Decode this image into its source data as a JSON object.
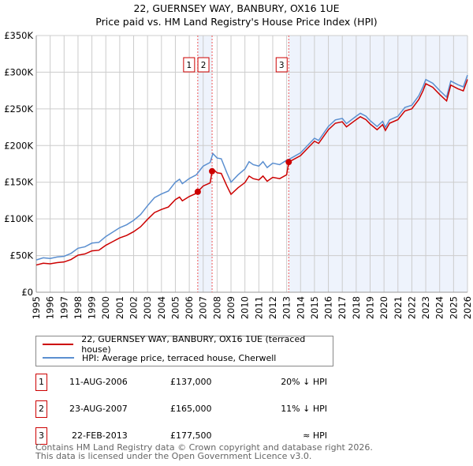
{
  "chart_data": {
    "type": "line",
    "title": "22, GUERNSEY WAY, BANBURY, OX16 1UE",
    "subtitle": "Price paid vs. HM Land Registry's House Price Index (HPI)",
    "xlim": [
      1995,
      2026
    ],
    "ylim": [
      0,
      350000
    ],
    "x_ticks": [
      "1995",
      "1996",
      "1997",
      "1998",
      "1999",
      "2000",
      "2001",
      "2002",
      "2003",
      "2004",
      "2005",
      "2006",
      "2007",
      "2008",
      "2009",
      "2010",
      "2011",
      "2012",
      "2013",
      "2014",
      "2015",
      "2016",
      "2017",
      "2018",
      "2019",
      "2020",
      "2021",
      "2022",
      "2023",
      "2024",
      "2025",
      "2026"
    ],
    "y_ticks": [
      {
        "v": 0,
        "label": "£0"
      },
      {
        "v": 50000,
        "label": "£50K"
      },
      {
        "v": 100000,
        "label": "£100K"
      },
      {
        "v": 150000,
        "label": "£150K"
      },
      {
        "v": 200000,
        "label": "£200K"
      },
      {
        "v": 250000,
        "label": "£250K"
      },
      {
        "v": 300000,
        "label": "£300K"
      },
      {
        "v": 350000,
        "label": "£350K"
      }
    ],
    "grid": true,
    "colors": {
      "price": "#cc0000",
      "hpi": "#5b8fd0",
      "shade": "#eef3fc"
    },
    "hpi": {
      "x": [
        1995,
        1995.5,
        1996,
        1996.5,
        1997,
        1997.5,
        1998,
        1998.5,
        1999,
        1999.5,
        2000,
        2000.5,
        2001,
        2001.5,
        2002,
        2002.5,
        2003,
        2003.5,
        2004,
        2004.5,
        2005,
        2005.3,
        2005.5,
        2006,
        2006.5,
        2007,
        2007.5,
        2007.7,
        2008,
        2008.3,
        2008.7,
        2009,
        2009.5,
        2010,
        2010.3,
        2010.6,
        2011,
        2011.3,
        2011.6,
        2012,
        2012.5,
        2013,
        2013.15,
        2014,
        2014.5,
        2015,
        2015.3,
        2016,
        2016.5,
        2017,
        2017.3,
        2018,
        2018.3,
        2018.7,
        2019,
        2019.5,
        2019.9,
        2020.1,
        2020.4,
        2021,
        2021.5,
        2022,
        2022.5,
        2022.8,
        2023,
        2023.5,
        2024,
        2024.5,
        2024.8,
        2025.3,
        2025.7,
        2026
      ],
      "y": [
        44000,
        47000,
        46000,
        48000,
        49000,
        53000,
        60000,
        62000,
        67000,
        68000,
        76000,
        82000,
        88000,
        92000,
        98000,
        106000,
        118000,
        129000,
        134000,
        138000,
        150000,
        154000,
        148000,
        155000,
        160000,
        172000,
        177000,
        189000,
        183000,
        182000,
        163000,
        150000,
        160000,
        168000,
        178000,
        174000,
        172000,
        178000,
        170000,
        176000,
        174000,
        180000,
        181000,
        190000,
        200000,
        210000,
        207000,
        226000,
        235000,
        237000,
        230000,
        240000,
        244000,
        240000,
        234000,
        226000,
        233000,
        225000,
        235000,
        240000,
        252000,
        255000,
        268000,
        280000,
        290000,
        285000,
        275000,
        266000,
        288000,
        283000,
        280000,
        296000
      ]
    },
    "sales": [
      {
        "id": "1",
        "date": "11-AUG-2006",
        "t": 2006.61,
        "price": 137000,
        "price_label": "£137,000",
        "hpi_rel": "20% ↓ HPI"
      },
      {
        "id": "2",
        "date": "23-AUG-2007",
        "t": 2007.64,
        "price": 165000,
        "price_label": "£165,000",
        "hpi_rel": "11% ↓ HPI"
      },
      {
        "id": "3",
        "date": "22-FEB-2013",
        "t": 2013.15,
        "price": 177500,
        "price_label": "£177,500",
        "hpi_rel": "≈ HPI"
      }
    ],
    "legend": {
      "price": "22, GUERNSEY WAY, BANBURY, OX16 1UE (terraced house)",
      "hpi": "HPI: Average price, terraced house, Cherwell"
    }
  },
  "footer": {
    "line1": "Contains HM Land Registry data © Crown copyright and database right 2026.",
    "line2": "This data is licensed under the Open Government Licence v3.0."
  }
}
